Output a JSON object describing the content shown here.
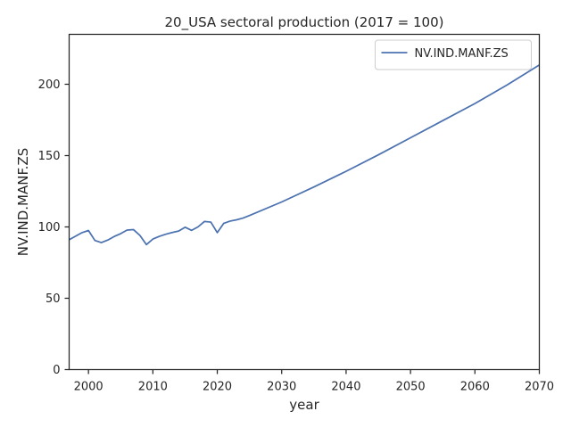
{
  "chart_data": {
    "type": "line",
    "title": "20_USA sectoral production (2017 = 100)",
    "xlabel": "year",
    "ylabel": "NV.IND.MANF.ZS",
    "xlim": [
      1997,
      2070
    ],
    "ylim": [
      0,
      235
    ],
    "xticks": [
      2000,
      2010,
      2020,
      2030,
      2040,
      2050,
      2060,
      2070
    ],
    "yticks": [
      0,
      50,
      100,
      150,
      200
    ],
    "grid": false,
    "legend_position": "top-right",
    "series": [
      {
        "name": "NV.IND.MANF.ZS",
        "color": "#4c72b0",
        "x": [
          1997,
          1998,
          1999,
          2000,
          2001,
          2002,
          2003,
          2004,
          2005,
          2006,
          2007,
          2008,
          2009,
          2010,
          2011,
          2012,
          2013,
          2014,
          2015,
          2016,
          2017,
          2018,
          2019,
          2020,
          2021,
          2022,
          2023,
          2024,
          2025,
          2030,
          2035,
          2040,
          2045,
          2050,
          2055,
          2060,
          2065,
          2070
        ],
        "y": [
          91,
          93.5,
          96,
          97.5,
          90.5,
          89,
          90.8,
          93.3,
          95.3,
          97.8,
          98.1,
          94,
          87.6,
          91.5,
          93.4,
          94.9,
          96.1,
          97.1,
          99.8,
          97.6,
          100,
          103.8,
          103.4,
          96,
          102.5,
          104.1,
          105,
          106.2,
          108,
          117.5,
          128,
          139,
          150.5,
          162.5,
          174.5,
          186.5,
          199.5,
          213.5
        ]
      }
    ]
  }
}
